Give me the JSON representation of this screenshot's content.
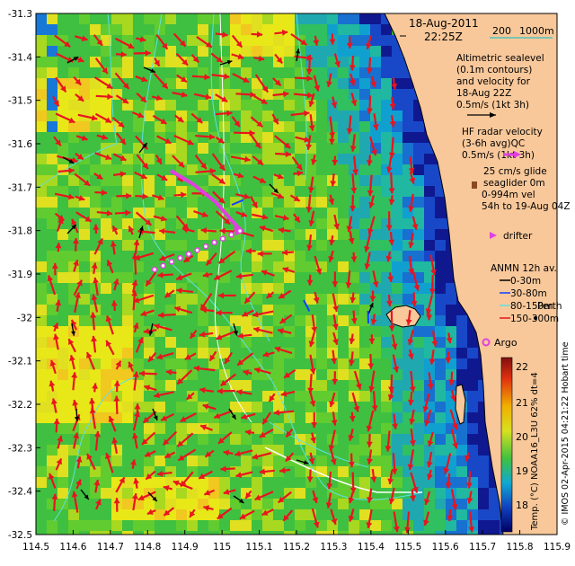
{
  "header": {
    "date": "18-Aug-2011",
    "time": "22:25Z",
    "scale_label": "200",
    "depth_label": "1000m"
  },
  "axes": {
    "lon_ticks": [
      "114.5",
      "114.6",
      "114.7",
      "114.8",
      "114.9",
      "115",
      "115.1",
      "115.2",
      "115.3",
      "115.4",
      "115.5",
      "115.6",
      "115.7",
      "115.8",
      "115.9"
    ],
    "lat_ticks": [
      "-31.3",
      "-31.4",
      "-31.5",
      "-31.6",
      "-31.7",
      "-31.8",
      "-31.9",
      "-32",
      "-32.1",
      "-32.2",
      "-32.3",
      "-32.4",
      "-32.5"
    ]
  },
  "legend": {
    "altimetric": [
      "Altimetric sealevel",
      "(0.1m contours)",
      "and velocity for",
      "18-Aug 22Z",
      "0.5m/s (1kt 3h)"
    ],
    "hf_radar": [
      "HF radar velocity",
      "(3-6h avg)QC",
      "0.5m/s (1kt 3h)"
    ],
    "glider": [
      "25 cm/s glide",
      "seaglider 0m",
      "0-994m vel",
      "54h to 19-Aug 04Z"
    ],
    "drifter": "drifter",
    "anmn_title": "ANMN 12h av.",
    "anmn_items": [
      "0-30m",
      "30-80m",
      "80-150m",
      "150-300m"
    ],
    "perth": "Perth",
    "argo": "Argo"
  },
  "colorbar": {
    "ticks": [
      "22",
      "21",
      "20",
      "19",
      "18"
    ],
    "label": "Temp. (°C) NOAA16_L3U 62% dt=4"
  },
  "credit": "© IMOS 02-Apr-2015 04:21:22 Hobart time",
  "colors": {
    "land": "#f8c89a",
    "radar_arrow": "#e8141e",
    "glider": "#e040e0",
    "contour": "#60e0e0"
  }
}
